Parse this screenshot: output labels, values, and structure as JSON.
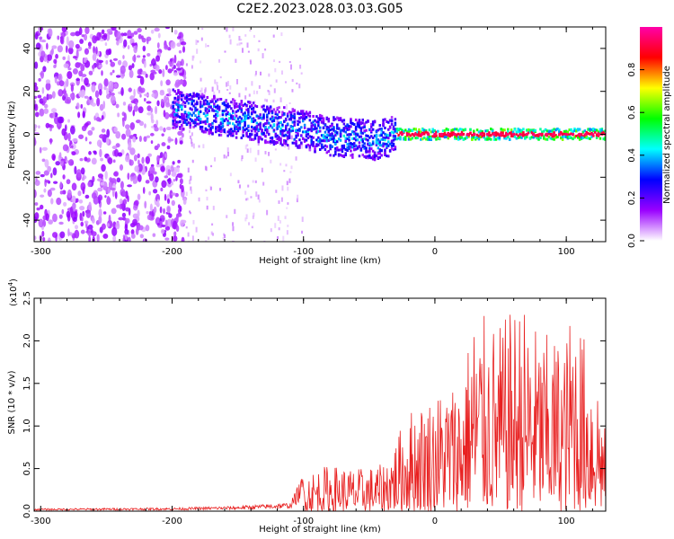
{
  "title": "C2E2.2023.028.03.03.G05",
  "chart_data": [
    {
      "type": "heatmap",
      "xlabel": "Height of straight line (km)",
      "ylabel": "Frequency (Hz)",
      "xlim": [
        -305,
        130
      ],
      "ylim": [
        -50,
        50
      ],
      "xticks": [
        -300,
        -200,
        -100,
        0,
        100
      ],
      "yticks": [
        -40,
        -20,
        0,
        20,
        40
      ],
      "xtick_labels": [
        "-300",
        "-200",
        "-100",
        "0",
        "100"
      ],
      "ytick_labels": [
        "-40",
        "-20",
        "0",
        "20",
        "40"
      ],
      "colorbar": {
        "label": "Normalized spectral amplitude",
        "range": [
          0,
          1
        ],
        "ticks": [
          0.0,
          0.2,
          0.4,
          0.6,
          0.8
        ],
        "tick_labels": [
          "0.0",
          "0.2",
          "0.4",
          "0.6",
          "0.8"
        ],
        "colors": [
          "#ffffff",
          "#9a00ff",
          "#0000ff",
          "#00ffff",
          "#00ff00",
          "#ffff00",
          "#ff0000",
          "#ff00aa"
        ]
      },
      "ridge": [
        {
          "x": -200,
          "y": 12
        },
        {
          "x": -180,
          "y": 10
        },
        {
          "x": -160,
          "y": 8
        },
        {
          "x": -140,
          "y": 6
        },
        {
          "x": -120,
          "y": 4
        },
        {
          "x": -100,
          "y": 2
        },
        {
          "x": -80,
          "y": -1
        },
        {
          "x": -60,
          "y": -2
        },
        {
          "x": -45,
          "y": -3
        },
        {
          "x": -30,
          "y": 0
        },
        {
          "x": 0,
          "y": 0
        },
        {
          "x": 50,
          "y": 0
        },
        {
          "x": 100,
          "y": 0
        },
        {
          "x": 130,
          "y": 0
        }
      ],
      "noise_region_xlim": [
        -305,
        -190
      ]
    },
    {
      "type": "line",
      "xlabel": "Height of straight line (km)",
      "ylabel": "SNR (10 * v/v)",
      "scale_label": "(x10",
      "scale_exponent": "4",
      "xlim": [
        -305,
        130
      ],
      "ylim": [
        0,
        2.5
      ],
      "xticks": [
        -300,
        -200,
        -100,
        0,
        100
      ],
      "yticks": [
        0.0,
        0.5,
        1.0,
        1.5,
        2.0,
        2.5
      ],
      "xtick_labels": [
        "-300",
        "-200",
        "-100",
        "0",
        "100"
      ],
      "ytick_labels": [
        "0.0",
        "0.5",
        "1.0",
        "1.5",
        "2.0",
        "2.5"
      ],
      "line_color": "#e82020",
      "envelope": [
        {
          "x": -305,
          "y": 0.03
        },
        {
          "x": -200,
          "y": 0.04
        },
        {
          "x": -150,
          "y": 0.06
        },
        {
          "x": -110,
          "y": 0.1
        },
        {
          "x": -100,
          "y": 0.45
        },
        {
          "x": -80,
          "y": 0.55
        },
        {
          "x": -60,
          "y": 0.5
        },
        {
          "x": -40,
          "y": 0.55
        },
        {
          "x": -30,
          "y": 0.85
        },
        {
          "x": -20,
          "y": 1.2
        },
        {
          "x": 0,
          "y": 1.4
        },
        {
          "x": 20,
          "y": 1.6
        },
        {
          "x": 30,
          "y": 2.35
        },
        {
          "x": 50,
          "y": 2.2
        },
        {
          "x": 65,
          "y": 2.5
        },
        {
          "x": 80,
          "y": 2.1
        },
        {
          "x": 100,
          "y": 2.05
        },
        {
          "x": 105,
          "y": 2.55
        },
        {
          "x": 115,
          "y": 2.0
        },
        {
          "x": 125,
          "y": 1.6
        },
        {
          "x": 130,
          "y": 0.9
        }
      ]
    }
  ]
}
